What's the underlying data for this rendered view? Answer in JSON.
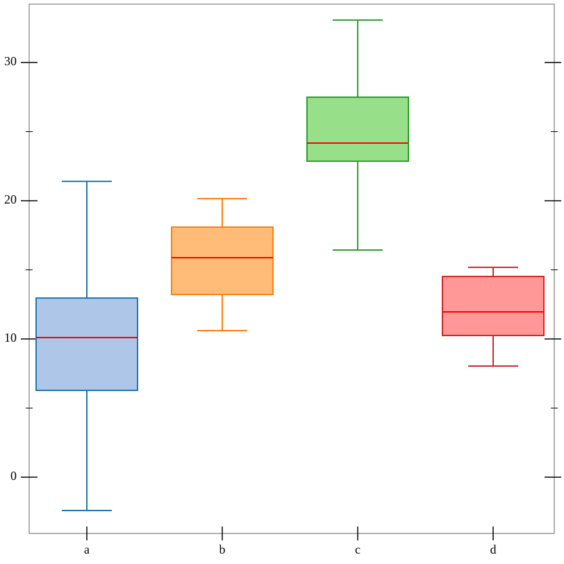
{
  "chart_data": {
    "type": "box",
    "categories": [
      "a",
      "b",
      "c",
      "d"
    ],
    "boxes": [
      {
        "whislo": -2.41,
        "q1": 6.28,
        "med": 10.1,
        "q3": 12.96,
        "whishi": 21.4
      },
      {
        "whislo": 10.6,
        "q1": 13.22,
        "med": 15.88,
        "q3": 18.09,
        "whishi": 20.15
      },
      {
        "whislo": 16.43,
        "q1": 22.86,
        "med": 24.17,
        "q3": 27.49,
        "whishi": 33.07
      },
      {
        "whislo": 8.04,
        "q1": 10.25,
        "med": 11.96,
        "q3": 14.52,
        "whishi": 15.18
      }
    ],
    "colors": [
      "#1f77b4",
      "#ff7f0e",
      "#2ca02c",
      "#d62728"
    ],
    "fill_colors": [
      "#aec7e8",
      "#ffbb78",
      "#98df8a",
      "#ff9896"
    ],
    "median_color": "#ff0000",
    "ylim": [
      -4.07,
      34.22
    ],
    "yticks": [
      0,
      10,
      20,
      30
    ],
    "yminor_ticks": [
      5,
      15,
      25
    ]
  }
}
